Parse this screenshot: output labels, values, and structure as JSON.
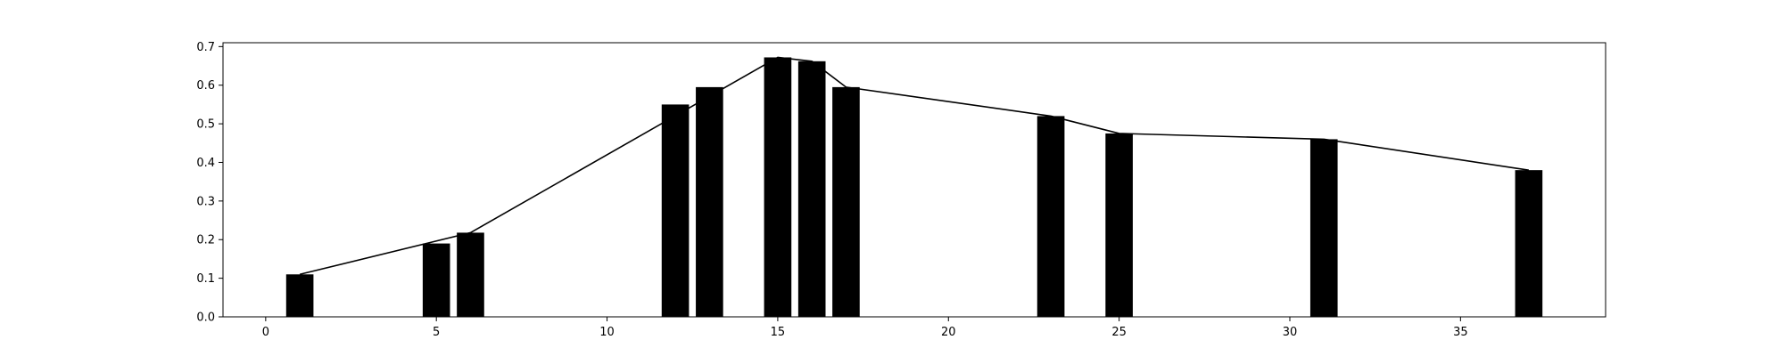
{
  "chart_data": {
    "type": "bar",
    "title": "",
    "xlabel": "",
    "ylabel": "",
    "xlim": [
      -1.25,
      39.25
    ],
    "ylim": [
      0,
      0.71
    ],
    "grid": false,
    "bar_width": 0.8,
    "bar_color": "#000000",
    "line_color": "#000000",
    "x_ticks": [
      0,
      5,
      10,
      15,
      20,
      25,
      30,
      35
    ],
    "x_tick_labels": [
      "0",
      "5",
      "10",
      "15",
      "20",
      "25",
      "30",
      "35"
    ],
    "y_ticks": [
      0.0,
      0.1,
      0.2,
      0.3,
      0.4,
      0.5,
      0.6,
      0.7
    ],
    "y_tick_labels": [
      "0.0",
      "0.1",
      "0.2",
      "0.3",
      "0.4",
      "0.5",
      "0.6",
      "0.7"
    ],
    "bars": {
      "x": [
        1,
        5,
        6,
        12,
        13,
        15,
        16,
        17,
        23,
        25,
        31,
        37
      ],
      "values": [
        0.11,
        0.19,
        0.218,
        0.55,
        0.595,
        0.672,
        0.662,
        0.595,
        0.52,
        0.475,
        0.46,
        0.38
      ]
    },
    "line": {
      "x": [
        1,
        6,
        15,
        16,
        17,
        23,
        25,
        31,
        37
      ],
      "values": [
        0.11,
        0.218,
        0.672,
        0.662,
        0.595,
        0.52,
        0.475,
        0.46,
        0.38
      ]
    }
  }
}
